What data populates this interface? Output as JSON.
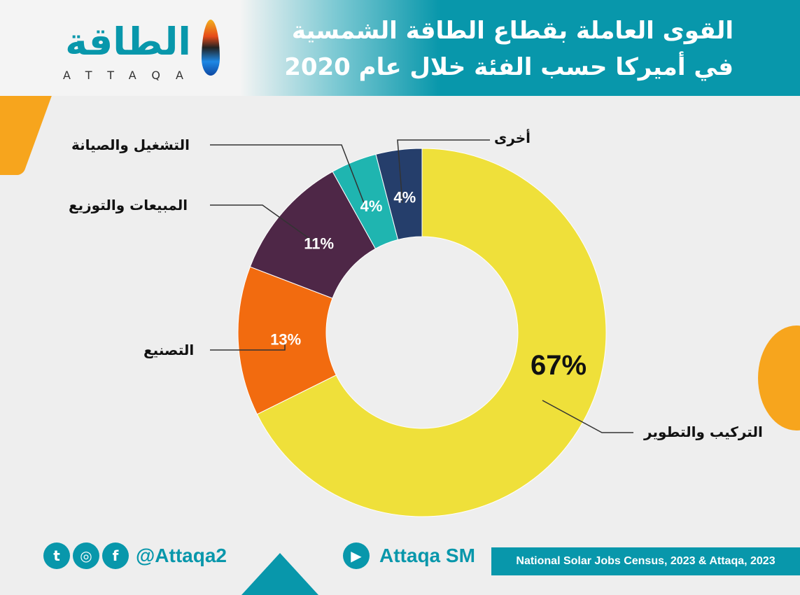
{
  "header": {
    "title_line1": "القوى العاملة بقطاع الطاقة الشمسية",
    "title_line2": "في أميركا حسب الفئة خلال عام 2020",
    "logo_ar": "الطاقة",
    "logo_en": "ATTAQA"
  },
  "chart_data": {
    "type": "pie",
    "donut": true,
    "title": "القوى العاملة بقطاع الطاقة الشمسية في أميركا حسب الفئة خلال عام 2020",
    "categories": [
      "التركيب والتطوير",
      "التصنيع",
      "المبيعات والتوزيع",
      "التشغيل والصيانة",
      "أخرى"
    ],
    "values": [
      67,
      13,
      11,
      4,
      4
    ],
    "labels": [
      "67%",
      "13%",
      "11%",
      "4%",
      "4%"
    ],
    "colors": [
      "#efe03a",
      "#f26b0f",
      "#4e2747",
      "#1fb5b0",
      "#253e6b"
    ],
    "label_colors": [
      "#111111",
      "#ffffff",
      "#ffffff",
      "#ffffff",
      "#ffffff"
    ]
  },
  "footer": {
    "social_icons": [
      "twitter-icon",
      "instagram-icon",
      "facebook-icon"
    ],
    "handle": "@Attaqa2",
    "youtube": "Attaqa SM",
    "source": "National Solar Jobs Census, 2023 & Attaqa, 2023"
  },
  "accent": "#0897ab"
}
